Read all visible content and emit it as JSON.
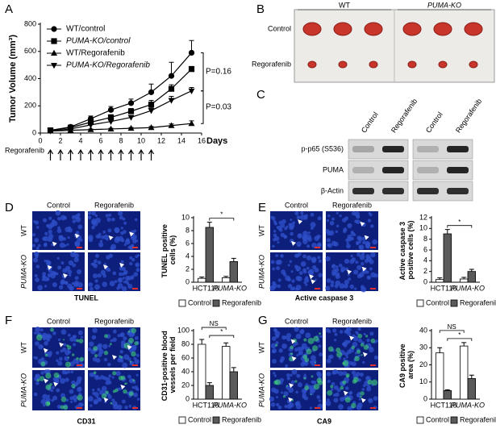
{
  "panels": {
    "letters": [
      "A",
      "B",
      "C",
      "D",
      "E",
      "F",
      "G"
    ],
    "B": {
      "columns": [
        "WT",
        "PUMA-KO"
      ],
      "rows": [
        "Control",
        "Regorafenib"
      ]
    },
    "C": {
      "lanes": [
        "Control",
        "Regorafenib",
        "Control",
        "Regorafenib"
      ],
      "rows": [
        "p-p65 (S536)",
        "PUMA",
        "β-Actin"
      ]
    },
    "D": {
      "columns": [
        "Control",
        "Regorafenib"
      ],
      "rows": [
        "WT",
        "PUMA-KO"
      ],
      "stain": "TUNEL"
    },
    "E": {
      "columns": [
        "Control",
        "Regorafenib"
      ],
      "rows": [
        "WT",
        "PUMA-KO"
      ],
      "stain": "Active caspase 3"
    },
    "F": {
      "columns": [
        "Control",
        "Regorafenib"
      ],
      "rows": [
        "WT",
        "PUMA-KO"
      ],
      "stain": "CD31"
    },
    "G": {
      "columns": [
        "Control",
        "Regorafenib"
      ],
      "rows": [
        "WT",
        "PUMA-KO"
      ],
      "stain": "CA9"
    }
  },
  "chart_data": [
    {
      "type": "line",
      "x_label": "Days",
      "y_label": "Tumor Volume (mm³)",
      "x": [
        1,
        3,
        5,
        7,
        9,
        11,
        13,
        15
      ],
      "series": [
        {
          "name": "WT/control",
          "marker": "circle",
          "color": "#000000",
          "values": [
            20,
            45,
            105,
            170,
            220,
            300,
            420,
            590
          ],
          "errors": [
            5,
            10,
            20,
            25,
            30,
            60,
            100,
            90
          ]
        },
        {
          "name": "PUMA-KO/control",
          "marker": "square",
          "color": "#000000",
          "values": [
            20,
            40,
            80,
            115,
            160,
            210,
            325,
            470
          ],
          "errors": [
            5,
            8,
            15,
            20,
            20,
            30,
            30,
            20
          ]
        },
        {
          "name": "WT/Regorafenib",
          "marker": "triangle-up",
          "color": "#000000",
          "values": [
            15,
            20,
            25,
            30,
            35,
            40,
            55,
            70
          ],
          "errors": [
            3,
            4,
            5,
            5,
            6,
            8,
            12,
            20
          ]
        },
        {
          "name": "PUMA-KO/Regorafenib",
          "marker": "triangle-down",
          "color": "#000000",
          "values": [
            15,
            30,
            60,
            85,
            115,
            165,
            240,
            310
          ],
          "errors": [
            3,
            6,
            10,
            12,
            15,
            20,
            30,
            25
          ]
        }
      ],
      "xlim": [
        0,
        16
      ],
      "xticks": [
        0,
        2,
        4,
        6,
        8,
        10,
        12,
        14,
        16
      ],
      "ylim": [
        0,
        800
      ],
      "yticks": [
        0,
        200,
        400,
        600,
        800
      ],
      "annotations": [
        {
          "text": "P=0.16",
          "between": [
            "WT/control",
            "PUMA-KO/Regorafenib"
          ]
        },
        {
          "text": "P=0.03",
          "between": [
            "PUMA-KO/Regorafenib",
            "WT/Regorafenib"
          ]
        }
      ],
      "dosing_label": "Regorafenib",
      "dosing_days": [
        1,
        2,
        3,
        4,
        5,
        6,
        7,
        8,
        9,
        10,
        11
      ]
    },
    {
      "type": "bar",
      "y_label": "TUNEL positive cells (%)",
      "categories": [
        "HCT116",
        "PUMA-KO"
      ],
      "series": [
        {
          "name": "Control",
          "color": "#ffffff",
          "values": [
            0.6,
            0.7
          ],
          "errors": [
            0.2,
            0.2
          ]
        },
        {
          "name": "Regorafenib",
          "color": "#5a5a5a",
          "values": [
            8.5,
            3.2
          ],
          "errors": [
            0.8,
            0.5
          ]
        }
      ],
      "ylim": [
        0,
        10
      ],
      "yticks": [
        0,
        2,
        4,
        6,
        8,
        10
      ],
      "annotations": [
        {
          "text": "*",
          "between": "Regorafenib"
        }
      ]
    },
    {
      "type": "bar",
      "y_label": "Active caspase 3 positive cells (%)",
      "categories": [
        "HCT116",
        "PUMA-KO"
      ],
      "series": [
        {
          "name": "Control",
          "color": "#ffffff",
          "values": [
            0.5,
            0.6
          ],
          "errors": [
            0.3,
            0.3
          ]
        },
        {
          "name": "Regorafenib",
          "color": "#5a5a5a",
          "values": [
            9,
            2
          ],
          "errors": [
            0.8,
            0.4
          ]
        }
      ],
      "ylim": [
        0,
        12
      ],
      "yticks": [
        0,
        2,
        4,
        6,
        8,
        10,
        12
      ],
      "annotations": [
        {
          "text": "*",
          "between": "Regorafenib"
        }
      ]
    },
    {
      "type": "bar",
      "y_label": "CD31-positive blood vessels per field",
      "categories": [
        "HCT116",
        "PUMA-KO"
      ],
      "series": [
        {
          "name": "Control",
          "color": "#ffffff",
          "values": [
            80,
            77
          ],
          "errors": [
            7,
            5
          ]
        },
        {
          "name": "Regorafenib",
          "color": "#5a5a5a",
          "values": [
            20,
            40
          ],
          "errors": [
            4,
            6
          ]
        }
      ],
      "ylim": [
        0,
        100
      ],
      "yticks": [
        0,
        20,
        40,
        60,
        80,
        100
      ],
      "annotations": [
        {
          "text": "NS",
          "between": "Control"
        },
        {
          "text": "*",
          "between": "Regorafenib"
        }
      ]
    },
    {
      "type": "bar",
      "y_label": "CA9 positive area (%)",
      "categories": [
        "HCT116",
        "PUMA-KO"
      ],
      "series": [
        {
          "name": "Control",
          "color": "#ffffff",
          "values": [
            27,
            31
          ],
          "errors": [
            3,
            2
          ]
        },
        {
          "name": "Regorafenib",
          "color": "#5a5a5a",
          "values": [
            5,
            12
          ],
          "errors": [
            0.5,
            2
          ]
        }
      ],
      "ylim": [
        0,
        40
      ],
      "yticks": [
        0,
        10,
        20,
        30,
        40
      ],
      "annotations": [
        {
          "text": "NS",
          "between": "Control"
        },
        {
          "text": "*",
          "between": "Regorafenib"
        }
      ]
    }
  ]
}
